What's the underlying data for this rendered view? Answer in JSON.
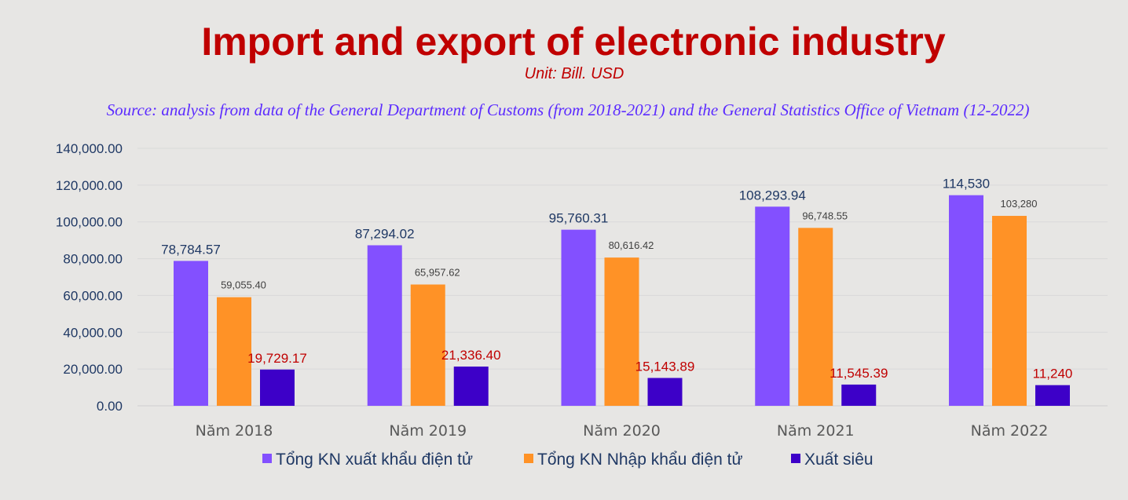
{
  "chart_data": {
    "type": "bar",
    "title": "Import and export of electronic industry",
    "subtitle": "Unit: Bill. USD",
    "source": "Source: analysis from data of the General Department of Customs (from 2018-2021) and the General Statistics Office of Vietnam (12-2022)",
    "categories": [
      "Năm 2018",
      "Năm 2019",
      "Năm 2020",
      "Năm 2021",
      "Năm 2022"
    ],
    "ylim": [
      0,
      140000
    ],
    "yticks": [
      "0.00",
      "20,000.00",
      "40,000.00",
      "60,000.00",
      "80,000.00",
      "100,000.00",
      "120,000.00",
      "140,000.00"
    ],
    "grid": true,
    "legend_position": "bottom",
    "series": [
      {
        "name": "Tổng KN xuất khẩu điện tử",
        "color": "#8350ff",
        "label_color": "#1f3864",
        "values": [
          78784.57,
          87294.02,
          95760.31,
          108293.94,
          114530
        ],
        "labels": [
          "78,784.57",
          "87,294.02",
          "95,760.31",
          "108,293.94",
          "114,530"
        ]
      },
      {
        "name": "Tổng KN Nhập khẩu điện tử",
        "color": "#ff9226",
        "label_color": "#404040",
        "values": [
          59055.4,
          65957.62,
          80616.42,
          96748.55,
          103280
        ],
        "labels": [
          "59,055.40",
          "65,957.62",
          "80,616.42",
          "96,748.55",
          "103,280"
        ]
      },
      {
        "name": "Xuất siêu",
        "color": "#3d00c8",
        "label_color": "#c00000",
        "values": [
          19729.17,
          21336.4,
          15143.89,
          11545.39,
          11240
        ],
        "labels": [
          "19,729.17",
          "21,336.40",
          "15,143.89",
          "11,545.39",
          "11,240"
        ]
      }
    ]
  }
}
